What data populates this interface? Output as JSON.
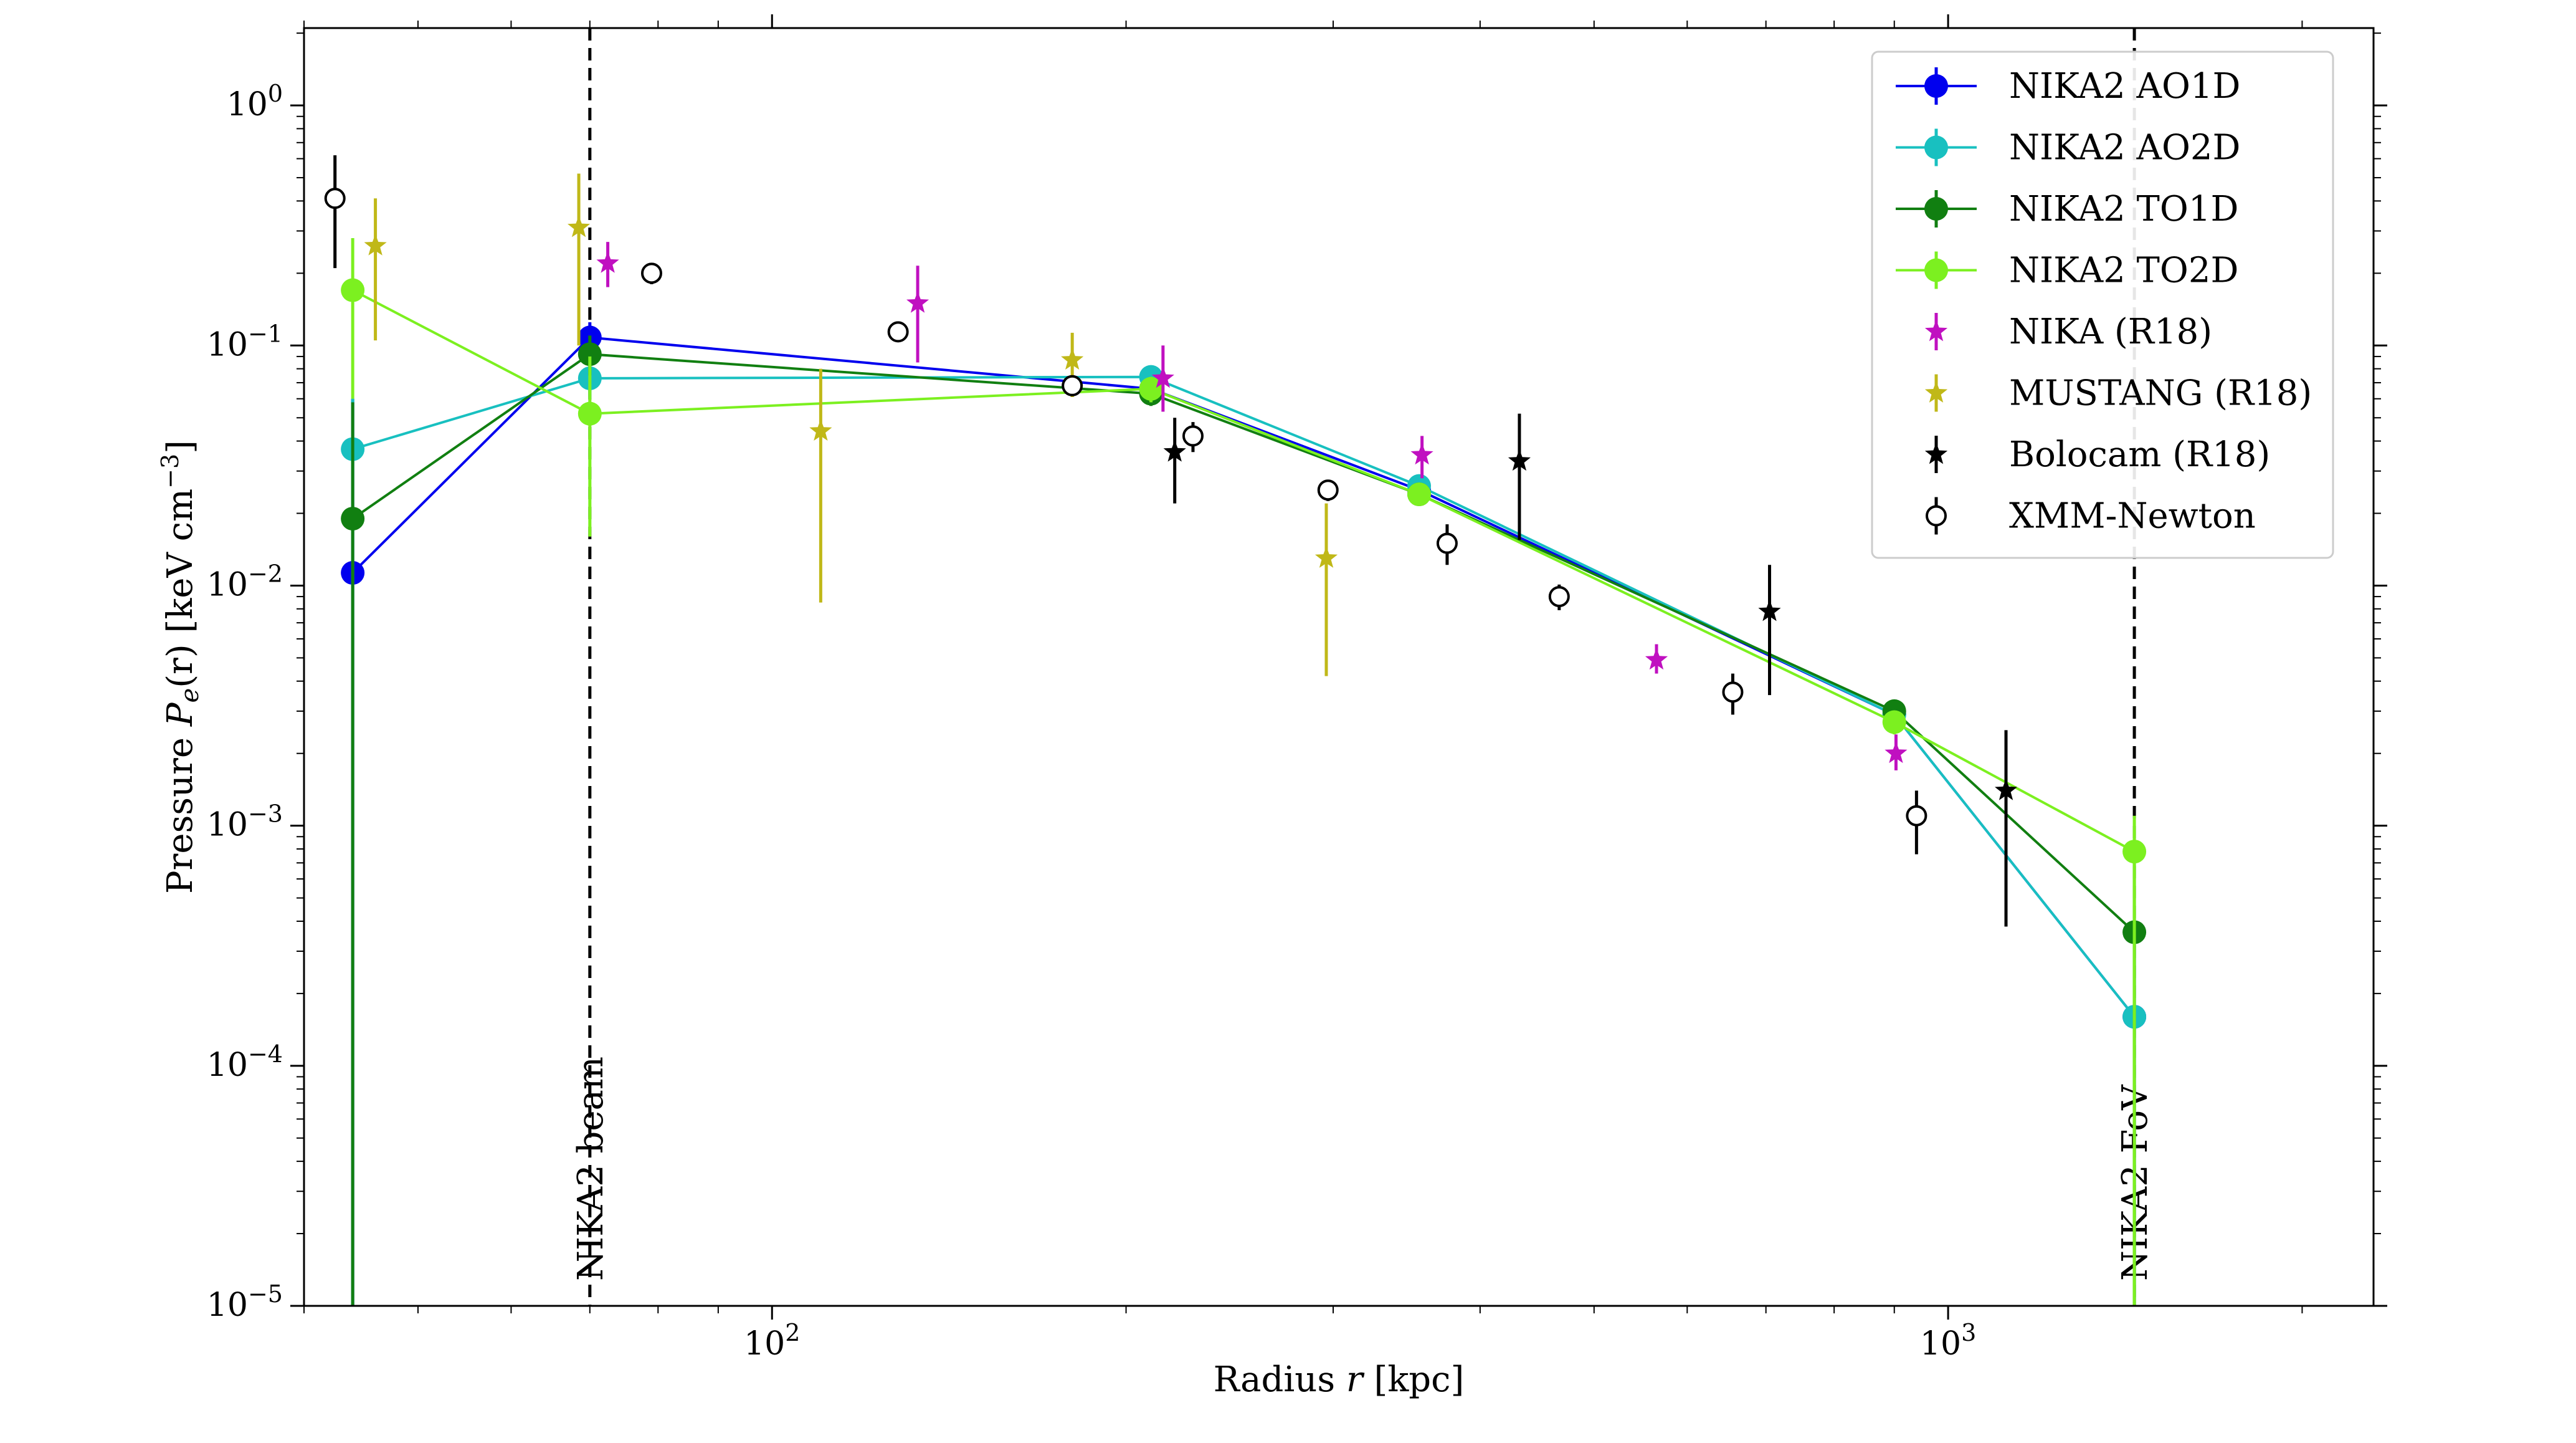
{
  "chart_data": {
    "type": "scatter",
    "xscale": "log",
    "yscale": "log",
    "xlabel_prefix": "Radius",
    "xlabel_var": "r",
    "xlabel_unit": "[kpc]",
    "ylabel_prefix": "Pressure",
    "ylabel_var": "P",
    "ylabel_sub": "e",
    "ylabel_arg": "(r)",
    "ylabel_unit": "[keV cm",
    "ylabel_exp": "−3",
    "ylabel_close": "]",
    "xlim": [
      40,
      2300
    ],
    "ylim": [
      1e-05,
      2.1
    ],
    "x_major_ticks": [
      {
        "value": 100,
        "base": "10",
        "exp": "2"
      },
      {
        "value": 1000,
        "base": "10",
        "exp": "3"
      }
    ],
    "y_major_ticks": [
      {
        "value": 1,
        "base": "10",
        "exp": "0"
      },
      {
        "value": 0.1,
        "base": "10",
        "exp": "−1"
      },
      {
        "value": 0.01,
        "base": "10",
        "exp": "−2"
      },
      {
        "value": 0.001,
        "base": "10",
        "exp": "−3"
      },
      {
        "value": 0.0001,
        "base": "10",
        "exp": "−4"
      },
      {
        "value": 1e-05,
        "base": "10",
        "exp": "−5"
      }
    ],
    "vlines": [
      {
        "x": 70,
        "label": "NIKA2 beam"
      },
      {
        "x": 1440,
        "label": "NIKA2 FoV"
      }
    ],
    "series": [
      {
        "name": "NIKA2 AO1D",
        "color": "#0000ee",
        "marker": "circle-filled",
        "line": true,
        "points": [
          {
            "x": 44,
            "y": 0.0113,
            "lo": 1e-05,
            "hi": 0.06
          },
          {
            "x": 70,
            "y": 0.108,
            "lo": 0.09,
            "hi": 0.125
          },
          {
            "x": 210,
            "y": 0.066,
            "lo": 0.058,
            "hi": 0.074
          },
          {
            "x": 355,
            "y": 0.025,
            "lo": 0.023,
            "hi": 0.027
          },
          {
            "x": 900,
            "y": 0.0029,
            "lo": 0.0026,
            "hi": 0.0032
          },
          {
            "x": 1440,
            "y": 0.00016,
            "lo": 1e-05,
            "hi": 0.0004
          }
        ]
      },
      {
        "name": "NIKA2 AO2D",
        "color": "#18c0c0",
        "marker": "circle-filled",
        "line": true,
        "points": [
          {
            "x": 44,
            "y": 0.037,
            "lo": 1e-05,
            "hi": 0.06
          },
          {
            "x": 70,
            "y": 0.073,
            "lo": 0.06,
            "hi": 0.09
          },
          {
            "x": 210,
            "y": 0.074,
            "lo": 0.066,
            "hi": 0.082
          },
          {
            "x": 355,
            "y": 0.026,
            "lo": 0.024,
            "hi": 0.028
          },
          {
            "x": 900,
            "y": 0.0029,
            "lo": 0.0026,
            "hi": 0.0032
          },
          {
            "x": 1440,
            "y": 0.00016,
            "lo": 1e-05,
            "hi": 0.0004
          }
        ]
      },
      {
        "name": "NIKA2 TO1D",
        "color": "#117f11",
        "marker": "circle-filled",
        "line": true,
        "points": [
          {
            "x": 44,
            "y": 0.019,
            "lo": 1e-05,
            "hi": 0.058
          },
          {
            "x": 70,
            "y": 0.092,
            "lo": 0.075,
            "hi": 0.11
          },
          {
            "x": 210,
            "y": 0.063,
            "lo": 0.056,
            "hi": 0.07
          },
          {
            "x": 355,
            "y": 0.024,
            "lo": 0.022,
            "hi": 0.026
          },
          {
            "x": 900,
            "y": 0.003,
            "lo": 0.0027,
            "hi": 0.0033
          },
          {
            "x": 1440,
            "y": 0.00036,
            "lo": 1e-05,
            "hi": 0.0007
          }
        ]
      },
      {
        "name": "NIKA2 TO2D",
        "color": "#7cf020",
        "marker": "circle-filled",
        "line": true,
        "points": [
          {
            "x": 44,
            "y": 0.17,
            "lo": 0.06,
            "hi": 0.28
          },
          {
            "x": 70,
            "y": 0.052,
            "lo": 0.016,
            "hi": 0.09
          },
          {
            "x": 210,
            "y": 0.066,
            "lo": 0.058,
            "hi": 0.074
          },
          {
            "x": 355,
            "y": 0.024,
            "lo": 0.022,
            "hi": 0.026
          },
          {
            "x": 900,
            "y": 0.0027,
            "lo": 0.0024,
            "hi": 0.003
          },
          {
            "x": 1440,
            "y": 0.00078,
            "lo": 1e-05,
            "hi": 0.0011
          }
        ]
      },
      {
        "name": "NIKA (R18)",
        "color": "#c010c0",
        "marker": "star",
        "line": false,
        "points": [
          {
            "x": 72.5,
            "y": 0.22,
            "lo": 0.175,
            "hi": 0.27
          },
          {
            "x": 133,
            "y": 0.15,
            "lo": 0.085,
            "hi": 0.215
          },
          {
            "x": 215,
            "y": 0.073,
            "lo": 0.053,
            "hi": 0.1
          },
          {
            "x": 357,
            "y": 0.035,
            "lo": 0.028,
            "hi": 0.042
          },
          {
            "x": 565,
            "y": 0.0049,
            "lo": 0.0043,
            "hi": 0.0057
          },
          {
            "x": 903,
            "y": 0.002,
            "lo": 0.0017,
            "hi": 0.0024
          }
        ]
      },
      {
        "name": "MUSTANG (R18)",
        "color": "#c0b818",
        "marker": "star",
        "line": false,
        "points": [
          {
            "x": 46,
            "y": 0.26,
            "lo": 0.105,
            "hi": 0.41
          },
          {
            "x": 68.5,
            "y": 0.31,
            "lo": 0.1,
            "hi": 0.52
          },
          {
            "x": 110,
            "y": 0.044,
            "lo": 0.0085,
            "hi": 0.08
          },
          {
            "x": 180,
            "y": 0.087,
            "lo": 0.061,
            "hi": 0.113
          },
          {
            "x": 296,
            "y": 0.013,
            "lo": 0.0042,
            "hi": 0.022
          }
        ]
      },
      {
        "name": "Bolocam (R18)",
        "color": "#000000",
        "marker": "star",
        "line": false,
        "points": [
          {
            "x": 220,
            "y": 0.036,
            "lo": 0.022,
            "hi": 0.05
          },
          {
            "x": 432,
            "y": 0.033,
            "lo": 0.0155,
            "hi": 0.052
          },
          {
            "x": 705,
            "y": 0.0078,
            "lo": 0.0035,
            "hi": 0.0122
          },
          {
            "x": 1120,
            "y": 0.0014,
            "lo": 0.00038,
            "hi": 0.0025
          }
        ]
      },
      {
        "name": "XMM-Newton",
        "color": "#000000",
        "marker": "circle-open",
        "line": false,
        "points": [
          {
            "x": 42.5,
            "y": 0.41,
            "lo": 0.21,
            "hi": 0.62
          },
          {
            "x": 79,
            "y": 0.2,
            "lo": 0.18,
            "hi": 0.22
          },
          {
            "x": 128,
            "y": 0.114,
            "lo": 0.104,
            "hi": 0.124
          },
          {
            "x": 180,
            "y": 0.068,
            "lo": 0.064,
            "hi": 0.072
          },
          {
            "x": 228,
            "y": 0.042,
            "lo": 0.036,
            "hi": 0.048
          },
          {
            "x": 297,
            "y": 0.025,
            "lo": 0.0225,
            "hi": 0.0275
          },
          {
            "x": 375,
            "y": 0.015,
            "lo": 0.0122,
            "hi": 0.018
          },
          {
            "x": 467,
            "y": 0.009,
            "lo": 0.0079,
            "hi": 0.0101
          },
          {
            "x": 656,
            "y": 0.0036,
            "lo": 0.0029,
            "hi": 0.0043
          },
          {
            "x": 940,
            "y": 0.0011,
            "lo": 0.00076,
            "hi": 0.0014
          }
        ]
      }
    ],
    "legend_position": "top-right"
  }
}
